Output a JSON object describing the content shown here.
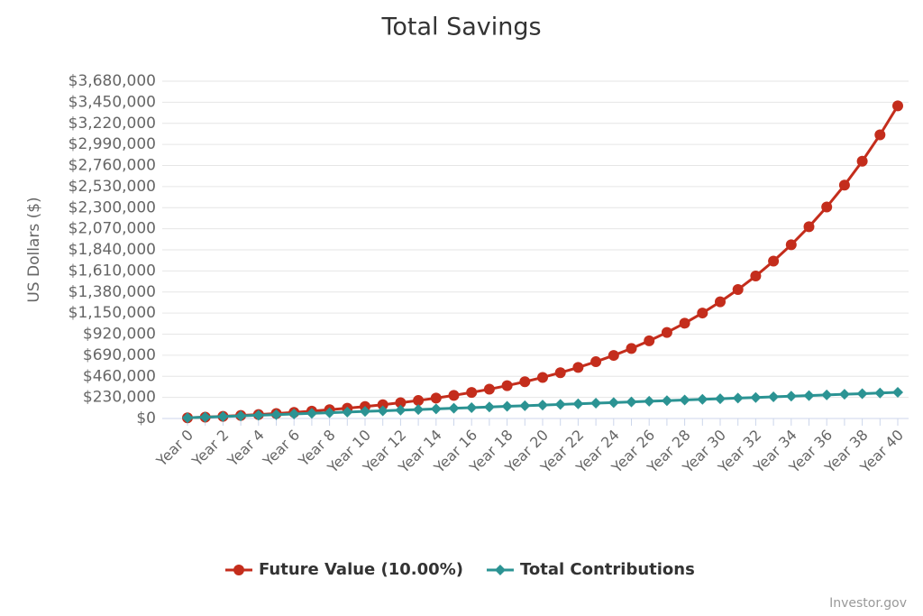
{
  "chart_data": {
    "type": "line",
    "title": "Total Savings",
    "y_label": "US Dollars ($)",
    "credit": "Investor.gov",
    "categories": [
      "Year 0",
      null,
      "Year 2",
      null,
      "Year 4",
      null,
      "Year 6",
      null,
      "Year 8",
      null,
      "Year 10",
      null,
      "Year 12",
      null,
      "Year 14",
      null,
      "Year 16",
      null,
      "Year 18",
      null,
      "Year 20",
      null,
      "Year 22",
      null,
      "Year 24",
      null,
      "Year 26",
      null,
      "Year 28",
      null,
      "Year 30",
      null,
      "Year 32",
      null,
      "Year 34",
      null,
      "Year 36",
      null,
      "Year 38",
      null,
      "Year 40"
    ],
    "series": [
      {
        "name": "Future Value (10.00%)",
        "color": "#c42d1c",
        "marker": "circle",
        "values": [
          7600,
          15290,
          23749,
          33054,
          43289,
          54548,
          66933,
          80556,
          95542,
          112026,
          130159,
          150105,
          172045,
          196180,
          222728,
          251930,
          284053,
          319389,
          358258,
          401013,
          448045,
          499779,
          556687,
          619286,
          688144,
          763889,
          847208,
          938859,
          1039674,
          1150572,
          1272559,
          1406745,
          1554349,
          1716714,
          1895316,
          2091777,
          2307885,
          2545604,
          2807094,
          3094733,
          3411137
        ]
      },
      {
        "name": "Total Contributions",
        "color": "#2b9393",
        "marker": "diamond",
        "values": [
          7600,
          14530,
          21460,
          28390,
          35320,
          42250,
          49180,
          56110,
          63040,
          69970,
          76900,
          83830,
          90760,
          97690,
          104620,
          111550,
          118480,
          125410,
          132340,
          139270,
          146200,
          153130,
          160060,
          166990,
          173920,
          180850,
          187780,
          194710,
          201640,
          208570,
          215500,
          222430,
          229360,
          236290,
          243220,
          250150,
          257080,
          264010,
          270940,
          277870,
          284800
        ]
      }
    ],
    "ylim": [
      0,
      3680000
    ],
    "yticks": [
      {
        "value": 0,
        "label": "$0"
      },
      {
        "value": 230000,
        "label": "$230,000"
      },
      {
        "value": 460000,
        "label": "$460,000"
      },
      {
        "value": 690000,
        "label": "$690,000"
      },
      {
        "value": 920000,
        "label": "$920,000"
      },
      {
        "value": 1150000,
        "label": "$1,150,000"
      },
      {
        "value": 1380000,
        "label": "$1,380,000"
      },
      {
        "value": 1610000,
        "label": "$1,610,000"
      },
      {
        "value": 1840000,
        "label": "$1,840,000"
      },
      {
        "value": 2070000,
        "label": "$2,070,000"
      },
      {
        "value": 2300000,
        "label": "$2,300,000"
      },
      {
        "value": 2530000,
        "label": "$2,530,000"
      },
      {
        "value": 2760000,
        "label": "$2,760,000"
      },
      {
        "value": 2990000,
        "label": "$2,990,000"
      },
      {
        "value": 3220000,
        "label": "$3,220,000"
      },
      {
        "value": 3450000,
        "label": "$3,450,000"
      },
      {
        "value": 3680000,
        "label": "$3,680,000"
      }
    ],
    "grid": true,
    "legend": "bottom"
  }
}
